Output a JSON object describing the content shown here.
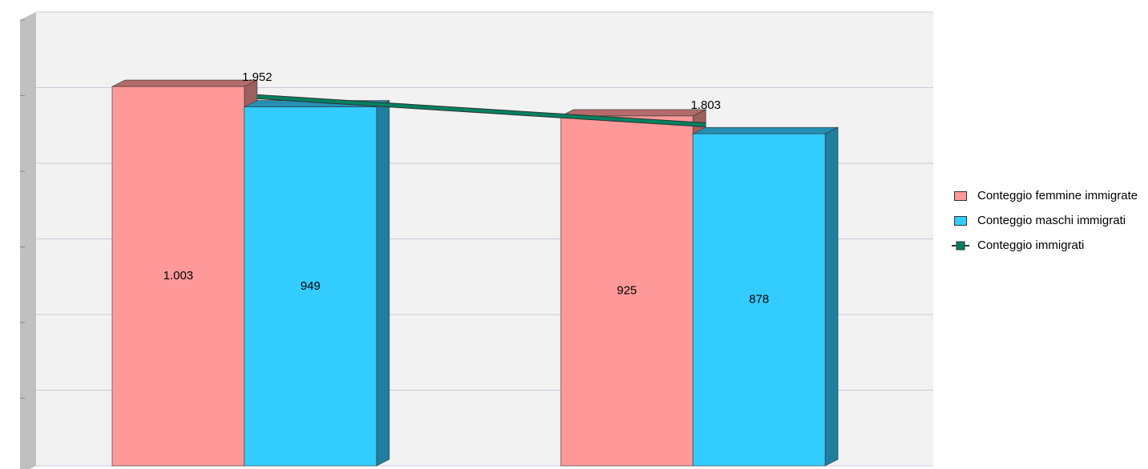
{
  "chart_data": {
    "type": "bar",
    "categories": [
      null,
      null
    ],
    "series": [
      {
        "name": "Conteggio femmine immigrate",
        "color": "#ff9999",
        "values": [
          1003,
          925
        ],
        "value_labels": [
          "1.003",
          "925"
        ]
      },
      {
        "name": "Conteggio maschi immigrati",
        "color": "#33ccff",
        "values": [
          949,
          878
        ],
        "value_labels": [
          "949",
          "878"
        ]
      },
      {
        "name": "Conteggio immigrati",
        "color": "#008060",
        "type": "line",
        "axis": "y2",
        "values": [
          1952,
          1803
        ],
        "value_labels": [
          "1.952",
          "1.803"
        ]
      }
    ],
    "ylim": [
      0,
      1200
    ],
    "yticks": [
      0,
      200,
      400,
      600,
      800,
      1000,
      1200
    ],
    "y2lim": [
      0,
      2400
    ],
    "grid": true,
    "legend": "right"
  }
}
